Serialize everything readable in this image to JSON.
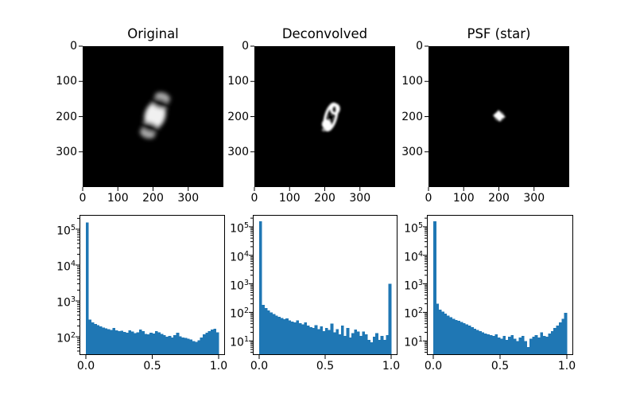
{
  "colors": {
    "bar": "#1f77b4",
    "figure_background": "#ffffff",
    "image_background": "#000000",
    "axis_and_text": "#000000"
  },
  "chart_data": [
    {
      "type": "heatmap",
      "panel": "top-left",
      "title": "Original",
      "description": "Blurred grayscale Saturn-like planet with dark ring gaps and faint outer ring arcs, tilted, just left of centre on black background",
      "xlim": [
        0,
        400
      ],
      "ylim": [
        0,
        400
      ],
      "y_inverted": true,
      "xticks": [
        0,
        100,
        200,
        300
      ],
      "yticks": [
        0,
        100,
        200,
        300
      ]
    },
    {
      "type": "heatmap",
      "panel": "top-centre",
      "title": "Deconvolved",
      "description": "Sharpened bright ring-and-blob figure-eight structure, tilted, near centre on black background",
      "xlim": [
        0,
        400
      ],
      "ylim": [
        0,
        400
      ],
      "y_inverted": true,
      "xticks": [
        0,
        100,
        200,
        300
      ],
      "yticks": [
        0,
        100,
        200,
        300
      ]
    },
    {
      "type": "heatmap",
      "panel": "top-right",
      "title": "PSF (star)",
      "description": "Small bright star spot slightly left of centre on black background",
      "xlim": [
        0,
        400
      ],
      "ylim": [
        0,
        400
      ],
      "y_inverted": true,
      "xticks": [
        0,
        100,
        200,
        300
      ],
      "yticks": [
        0,
        100,
        200,
        300
      ]
    },
    {
      "type": "bar",
      "panel": "bottom-left",
      "title": "",
      "bins": 50,
      "bin_start": 0,
      "bin_end": 1,
      "yscale": "log",
      "ylim": [
        31,
        250000
      ],
      "yticks": [
        100,
        1000,
        10000,
        100000
      ],
      "xticks": [
        0,
        0.5,
        1
      ],
      "values": [
        155000,
        300,
        250,
        230,
        210,
        195,
        180,
        170,
        162,
        155,
        175,
        150,
        142,
        148,
        135,
        130,
        152,
        140,
        126,
        132,
        158,
        142,
        120,
        116,
        130,
        124,
        142,
        134,
        120,
        112,
        100,
        106,
        96,
        110,
        130,
        102,
        96,
        92,
        88,
        84,
        76,
        72,
        80,
        95,
        118,
        130,
        142,
        158,
        168,
        134
      ]
    },
    {
      "type": "bar",
      "panel": "bottom-centre",
      "title": "",
      "bins": 50,
      "bin_start": 0,
      "bin_end": 1,
      "yscale": "log",
      "ylim": [
        3.2,
        260000
      ],
      "yticks": [
        10,
        100,
        1000,
        10000,
        100000
      ],
      "xticks": [
        0,
        0.5,
        1
      ],
      "values": [
        155000,
        185,
        140,
        118,
        100,
        88,
        78,
        70,
        64,
        58,
        62,
        52,
        48,
        45,
        52,
        42,
        38,
        44,
        34,
        30,
        28,
        36,
        26,
        32,
        22,
        28,
        24,
        40,
        20,
        26,
        17,
        34,
        15,
        28,
        13,
        19,
        25,
        21,
        15,
        21,
        17,
        11,
        9,
        14,
        19,
        11,
        15,
        11,
        16,
        1000
      ]
    },
    {
      "type": "bar",
      "panel": "bottom-right",
      "title": "",
      "bins": 50,
      "bin_start": 0,
      "bin_end": 1,
      "yscale": "log",
      "ylim": [
        3.2,
        260000
      ],
      "yticks": [
        10,
        100,
        1000,
        10000,
        100000
      ],
      "xticks": [
        0,
        0.5,
        1
      ],
      "values": [
        155000,
        200,
        125,
        105,
        90,
        78,
        68,
        60,
        54,
        50,
        46,
        42,
        38,
        34,
        30,
        27,
        24,
        22,
        20,
        18,
        17,
        16,
        15,
        17,
        13,
        12,
        15,
        11,
        14,
        16,
        12,
        10,
        13,
        15,
        10,
        6,
        12,
        14,
        16,
        13,
        20,
        15,
        14,
        18,
        22,
        28,
        35,
        45,
        60,
        95
      ]
    }
  ]
}
